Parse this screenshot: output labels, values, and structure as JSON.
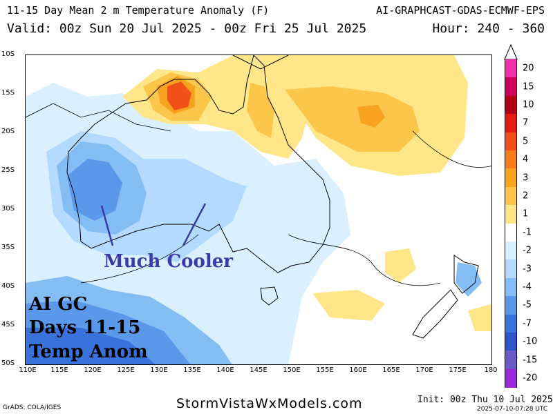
{
  "header": {
    "title": "11-15 Day Mean 2 m Temperature Anomaly (F)",
    "source": "AI-GRAPHCAST-GDAS-ECMWF-EPS",
    "valid": "Valid: 00z Sun 20 Jul 2025 - 00z Fri 25 Jul 2025",
    "hours": "Hour: 240 - 360"
  },
  "map": {
    "lat_ticks": [
      "10S",
      "15S",
      "20S",
      "25S",
      "30S",
      "35S",
      "40S",
      "45S",
      "50S"
    ],
    "lon_ticks": [
      "110E",
      "115E",
      "120E",
      "125E",
      "130E",
      "135E",
      "140E",
      "145E",
      "150E",
      "155E",
      "160E",
      "165E",
      "170E",
      "175E",
      "180"
    ],
    "colors": {
      "land_outline": "#000000",
      "warm1": "#ffe07a",
      "warm2": "#fcc64a",
      "warm3": "#f5a623",
      "warm4": "#ec7a12",
      "cool1": "#d8efff",
      "cool2": "#b3daff",
      "cool3": "#86bdf5",
      "cool4": "#5b98ea",
      "cool5": "#3a72dc",
      "cool6": "#2f55c9"
    }
  },
  "colorbar": {
    "levels": [
      {
        "label": "20",
        "color": "#f033a8"
      },
      {
        "label": "15",
        "color": "#cc0058"
      },
      {
        "label": "10",
        "color": "#b10015"
      },
      {
        "label": "7",
        "color": "#e41b14"
      },
      {
        "label": "5",
        "color": "#f0521a"
      },
      {
        "label": "4",
        "color": "#f47c1a"
      },
      {
        "label": "3",
        "color": "#f8a31f"
      },
      {
        "label": "2",
        "color": "#fcc64a"
      },
      {
        "label": "1",
        "color": "#ffe789"
      },
      {
        "label": "-1",
        "color": "#ffffff"
      },
      {
        "label": "-2",
        "color": "#daf0ff"
      },
      {
        "label": "-3",
        "color": "#b4dbff"
      },
      {
        "label": "-4",
        "color": "#84bdf4"
      },
      {
        "label": "-5",
        "color": "#5a98ea"
      },
      {
        "label": "-7",
        "color": "#3a72dc"
      },
      {
        "label": "-10",
        "color": "#2e55c7"
      },
      {
        "label": "-15",
        "color": "#6a5bc4"
      },
      {
        "label": "-20",
        "color": "#9b28d8"
      }
    ]
  },
  "annotations": {
    "line1": "AI GC",
    "line2": "Days 11-15",
    "line3": "Temp Anom",
    "cooler": "Much Cooler"
  },
  "footer": {
    "grads": "GrADS: COLA/IGES",
    "site": "StormVistaWxModels.com",
    "init": "Init: 00z Thu 10 Jul 2025",
    "stamp": "2025-07-10-07:28 UTC"
  }
}
